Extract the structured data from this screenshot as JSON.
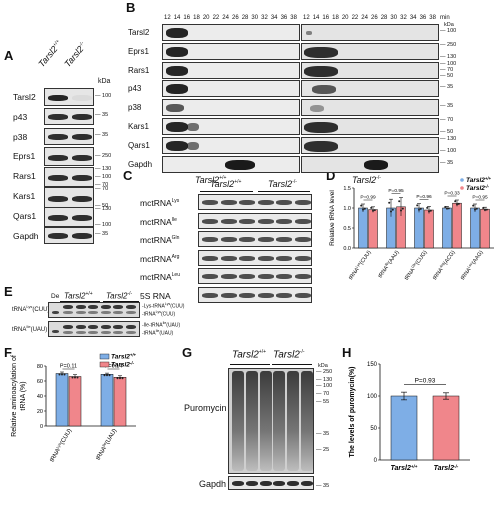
{
  "panels": {
    "A": "A",
    "B": "B",
    "C": "C",
    "D": "D",
    "E": "E",
    "F": "F",
    "G": "G",
    "H": "H"
  },
  "panelA": {
    "col_wt": "Tarsl2",
    "col_wt_sup": "+/+",
    "col_ko": "Tarsl2",
    "col_ko_sup": "-/-",
    "kda": "kDa",
    "rows": [
      {
        "name": "Tarsl2",
        "markers": [
          "100"
        ]
      },
      {
        "name": "p43",
        "markers": [
          "35"
        ]
      },
      {
        "name": "p38",
        "markers": [
          "35"
        ]
      },
      {
        "name": "Eprs1",
        "markers": [
          "250"
        ]
      },
      {
        "name": "Rars1",
        "markers": [
          "130",
          "100",
          "70"
        ]
      },
      {
        "name": "Kars1",
        "markers": [
          "70",
          "50"
        ]
      },
      {
        "name": "Qars1",
        "markers": [
          "130",
          "100"
        ]
      },
      {
        "name": "Gapdh",
        "markers": [
          "35"
        ]
      }
    ]
  },
  "panelB": {
    "fractions": [
      "12",
      "14",
      "16",
      "18",
      "20",
      "22",
      "24",
      "26",
      "28",
      "30",
      "32",
      "34",
      "36",
      "38"
    ],
    "min_label": "min",
    "kda": "kDa",
    "rows": [
      {
        "name": "Tarsl2",
        "markers": [
          "100"
        ]
      },
      {
        "name": "Eprs1",
        "markers": [
          "250",
          "130"
        ]
      },
      {
        "name": "Rars1",
        "markers": [
          "100",
          "70",
          "50"
        ]
      },
      {
        "name": "p43",
        "markers": [
          "35"
        ]
      },
      {
        "name": "p38",
        "markers": [
          "35"
        ]
      },
      {
        "name": "Kars1",
        "markers": [
          "70",
          "50"
        ]
      },
      {
        "name": "Qars1",
        "markers": [
          "130",
          "100"
        ]
      },
      {
        "name": "Gapdh",
        "markers": [
          "35"
        ]
      }
    ],
    "label_wt": "Tarsl2",
    "label_wt_sup": "+/+",
    "label_ko": "Tarsl2",
    "label_ko_sup": "-/-"
  },
  "panelC": {
    "col_wt": "Tarsl2",
    "col_wt_sup": "+/+",
    "col_ko": "Tarsl2",
    "col_ko_sup": "-/-",
    "rows": [
      {
        "base": "mctRNA",
        "sup": "Lys"
      },
      {
        "base": "mctRNA",
        "sup": "Ile"
      },
      {
        "base": "mctRNA",
        "sup": "Gln"
      },
      {
        "base": "mctRNA",
        "sup": "Arg"
      },
      {
        "base": "mctRNA",
        "sup": "Leu"
      },
      {
        "base": "5S RNA",
        "sup": ""
      }
    ]
  },
  "panelE": {
    "de": "De",
    "col_wt": "Tarsl2",
    "col_wt_sup": "+/+",
    "col_ko": "Tarsl2",
    "col_ko_sup": "-/-",
    "row1_label": "tRNA",
    "row1_sup": "Lys",
    "row1_tail": "(CUU)",
    "row2_label": "tRNA",
    "row2_sup": "Ile",
    "row2_tail": "(UAU)",
    "right1": "Lys-tRNA",
    "right1_sup": "Lys",
    "right1_tail": "(CUU)",
    "right2": "tRNA",
    "right2_sup": "Lys",
    "right2_tail": "(CUU)",
    "right3": "Ile-tRNA",
    "right3_sup": "Ile",
    "right3_tail": "(UAU)",
    "right4": "tRNA",
    "right4_sup": "Ile",
    "right4_tail": "(UAU)"
  },
  "panelG": {
    "col_wt": "Tarsl2",
    "col_wt_sup": "+/+",
    "col_ko": "Tarsl2",
    "col_ko_sup": "-/-",
    "label": "Puromycin",
    "loading": "Gapdh",
    "kda": "kDa",
    "markers": [
      "250",
      "130",
      "100",
      "70",
      "55",
      "35",
      "25",
      "35"
    ]
  },
  "chart_data": [
    {
      "type": "bar",
      "panel": "D",
      "ylabel": "Relative tRNA level",
      "ylim": [
        0,
        1.5
      ],
      "yticks": [
        "0.0",
        "0.5",
        "1.0",
        "1.5"
      ],
      "categories": [
        "tRNALys(CUU)",
        "tRNAIle(AAU)",
        "tRNAGln(CUG)",
        "tRNAArg(ACG)",
        "tRNALeu(AAG)"
      ],
      "category_base": [
        "tRNA",
        "tRNA",
        "tRNA",
        "tRNA",
        "tRNA"
      ],
      "category_sup": [
        "Lys",
        "Ile",
        "Gln",
        "Arg",
        "Leu"
      ],
      "category_tail": [
        "(CUU)",
        "(AAU)",
        "(CUG)",
        "(ACG)",
        "(AAG)"
      ],
      "series": [
        {
          "name": "Tarsl2+/+",
          "base": "Tarsl2",
          "sup": "+/+",
          "color": "#7eaee6",
          "values": [
            1.0,
            1.0,
            1.0,
            1.0,
            1.0
          ],
          "err": [
            0.1,
            0.22,
            0.11,
            0.04,
            0.1
          ]
        },
        {
          "name": "Tarsl2-/-",
          "base": "Tarsl2",
          "sup": "-/-",
          "color": "#f0868b",
          "values": [
            0.96,
            1.03,
            0.95,
            1.12,
            0.97
          ],
          "err": [
            0.07,
            0.23,
            0.09,
            0.08,
            0.05
          ]
        }
      ],
      "pvalues": [
        "P=0.99",
        "P=0.95",
        "P=0.96",
        "P=0.33",
        "P=0.95"
      ],
      "legend": "top-right"
    },
    {
      "type": "bar",
      "panel": "F",
      "ylabel": "Relative aminoacylation of tRNA (%)",
      "ylabel_line1": "Relative aminoacylation of",
      "ylabel_line2": "tRNA (%)",
      "ylim": [
        0,
        80
      ],
      "yticks": [
        "0",
        "20",
        "40",
        "60",
        "80"
      ],
      "categories": [
        "tRNALys(CUU)",
        "tRNAIle(UAU)"
      ],
      "category_base": [
        "tRNA",
        "tRNA"
      ],
      "category_sup": [
        "Lys",
        "Ile"
      ],
      "category_tail": [
        "(CUU)",
        "(UAU)"
      ],
      "series": [
        {
          "name": "Tarsl2+/+",
          "base": "Tarsl2",
          "sup": "+/+",
          "color": "#7eaee6",
          "values": [
            70,
            69
          ],
          "err": [
            2,
            1.5
          ]
        },
        {
          "name": "Tarsl2-/-",
          "base": "Tarsl2",
          "sup": "-/-",
          "color": "#f0868b",
          "values": [
            66,
            65
          ],
          "err": [
            2.5,
            2
          ]
        }
      ],
      "pvalues": [
        "P=0.11",
        "P=0.14"
      ],
      "legend": "top-right"
    },
    {
      "type": "bar",
      "panel": "H",
      "ylabel": "The levels of puromycin(%)",
      "ylim": [
        0,
        150
      ],
      "yticks": [
        "0",
        "50",
        "100",
        "150"
      ],
      "categories": [
        "Tarsl2+/+",
        "Tarsl2-/-"
      ],
      "category_base": [
        "Tarsl2",
        "Tarsl2"
      ],
      "category_sup": [
        "+/+",
        "-/-"
      ],
      "series": [
        {
          "name": "levels",
          "colors": [
            "#7eaee6",
            "#f0868b"
          ],
          "values": [
            100,
            100
          ],
          "err": [
            6,
            5
          ]
        }
      ],
      "pvalues": [
        "P=0.93"
      ]
    }
  ]
}
